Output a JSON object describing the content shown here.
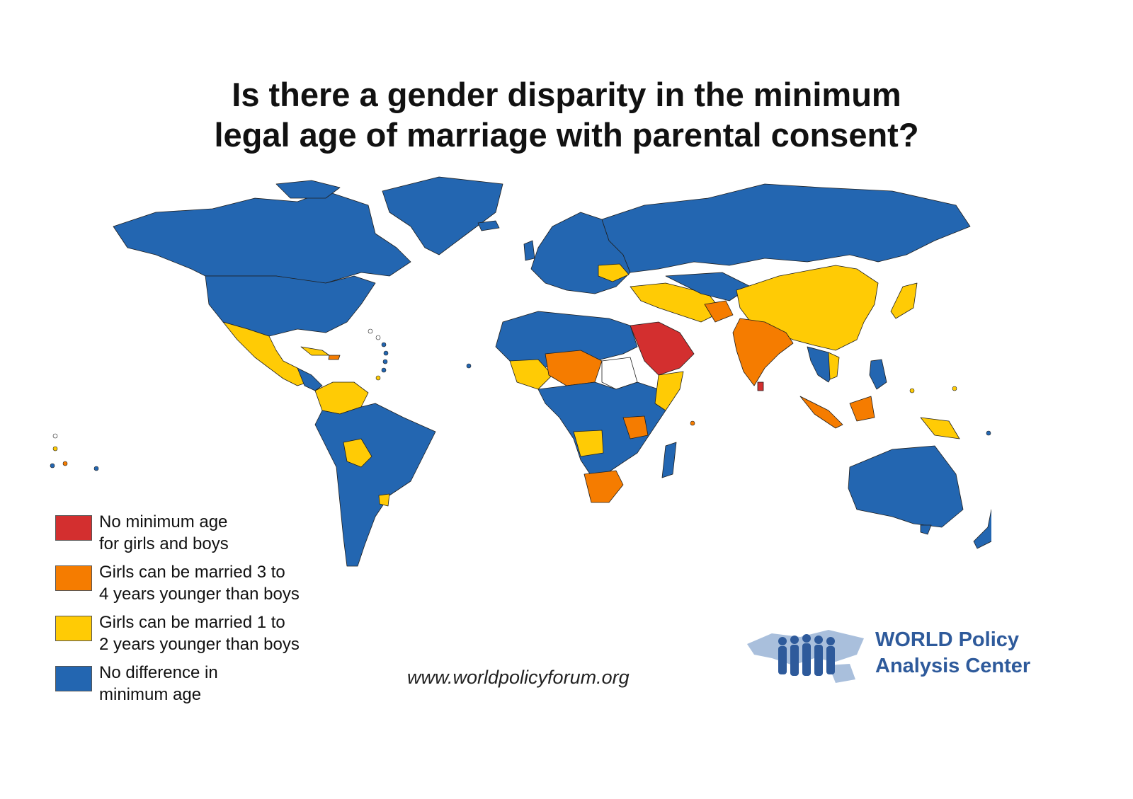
{
  "title": {
    "line1": "Is there a gender disparity in the minimum",
    "line2": "legal age of marriage with parental consent?"
  },
  "colors": {
    "none": "#d32f2f",
    "three_four": "#f57c00",
    "one_two": "#ffcb05",
    "no_difference": "#2366b1",
    "no_data": "#ffffff",
    "border": "#1f1f1f"
  },
  "legend": [
    {
      "color": "#d32f2f",
      "line1": "No minimum age",
      "line2": "for girls and boys"
    },
    {
      "color": "#f57c00",
      "line1": "Girls can be married 3 to",
      "line2": "4 years younger than boys"
    },
    {
      "color": "#ffcb05",
      "line1": "Girls can be married 1 to",
      "line2": "2 years younger than boys"
    },
    {
      "color": "#2366b1",
      "line1": "No difference in",
      "line2": "minimum age"
    }
  ],
  "website": "www.worldpolicyforum.org",
  "logo": {
    "line1": "WORLD Policy",
    "line2": "Analysis Center",
    "icon": "world-people-silhouette-icon"
  }
}
